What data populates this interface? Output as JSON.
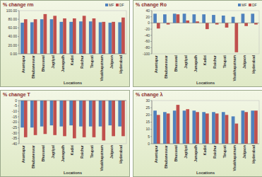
{
  "chart_data": [
    {
      "type": "bar",
      "title": "% change rm",
      "x_label": "Locations",
      "categories": [
        "Anantapur",
        "Bhubaneswar",
        "Bhusawal",
        "Jagtiyal",
        "Junagadh",
        "Kadiri",
        "Raichur",
        "Tirupati",
        "Visakhapatnam",
        "Jalgaon",
        "Hyderabad"
      ],
      "series": [
        {
          "name": "MF",
          "color": "#4f81bd",
          "values": [
            72,
            73,
            80,
            80,
            74,
            74,
            75,
            75,
            73,
            72,
            73
          ]
        },
        {
          "name": "DF",
          "color": "#c0504d",
          "values": [
            80,
            80,
            92,
            88,
            82,
            82,
            88,
            82,
            74,
            74,
            84
          ]
        }
      ],
      "ylim": [
        0,
        100
      ],
      "yticks": [
        {
          "value": 0,
          "label": "0.00"
        },
        {
          "value": 20,
          "label": "20.00"
        },
        {
          "value": 40,
          "label": "40.00"
        },
        {
          "value": 60,
          "label": "60.00"
        },
        {
          "value": 80,
          "label": "80.00"
        },
        {
          "value": 100,
          "label": "100.00"
        }
      ],
      "legend": "top-right"
    },
    {
      "type": "bar",
      "title": "% change Ro",
      "x_label": "Locations",
      "categories": [
        "Anantapur",
        "Bhubaneswar",
        "Bhusawal",
        "Jagtiyal",
        "Junagadh",
        "Kadiri",
        "Raichur",
        "Tirupati",
        "Visakhapatnam",
        "Jalgaon",
        "Hyderabad"
      ],
      "series": [
        {
          "name": "MF",
          "color": "#4f81bd",
          "values": [
            30,
            28,
            30,
            30,
            28,
            28,
            26,
            24,
            20,
            30,
            30
          ]
        },
        {
          "name": "DF",
          "color": "#c0504d",
          "values": [
            -18,
            -5,
            28,
            8,
            5,
            -20,
            -5,
            -15,
            -95,
            -10,
            -5
          ]
        }
      ],
      "ylim": [
        -100,
        40
      ],
      "yticks": [
        -100,
        -80,
        -60,
        -40,
        -20,
        0,
        20,
        40
      ],
      "legend": "top-right"
    },
    {
      "type": "bar",
      "title": "% change T",
      "x_label": "Locations",
      "categories": [
        "Anantapur",
        "Bhubaneswar",
        "Bhusawal",
        "Jagtiyal",
        "Junagadh",
        "Kadiri",
        "Raichur",
        "Tirupati",
        "Visakhapatnam",
        "Jalgaon",
        "Hyderabad"
      ],
      "series": [
        {
          "color": "#4f81bd",
          "values": [
            -25,
            -25,
            -24,
            -23,
            -24,
            -23,
            -24,
            -24,
            -24,
            -23,
            -24
          ]
        },
        {
          "color": "#c0504d",
          "values": [
            -34,
            -32,
            -31,
            -32,
            -33,
            -35,
            -34,
            -34,
            -37,
            -33,
            -33
          ]
        }
      ],
      "ylim": [
        -40,
        0
      ],
      "yticks": [
        -40,
        -35,
        -30,
        -25,
        -20,
        -15,
        -10,
        -5,
        0
      ]
    },
    {
      "type": "bar",
      "title": "% change λ",
      "x_label": "Locations",
      "categories": [
        "Anantapur",
        "Bhubaneswar",
        "Bhusawal",
        "Jagtiyal",
        "Junagadh",
        "Kadiri",
        "Raichur",
        "Tirupati",
        "Visakhapatnam",
        "Jalgaon",
        "Hyderabad"
      ],
      "series": [
        {
          "color": "#4f81bd",
          "values": [
            23,
            22,
            23,
            23,
            23,
            22,
            22,
            22,
            19,
            23,
            23
          ]
        },
        {
          "color": "#c0504d",
          "values": [
            20,
            21,
            27,
            24,
            22,
            21,
            21,
            20,
            14,
            22,
            23
          ]
        }
      ],
      "ylim": [
        0,
        30
      ],
      "yticks": [
        0,
        5,
        10,
        15,
        20,
        25,
        30
      ]
    }
  ]
}
